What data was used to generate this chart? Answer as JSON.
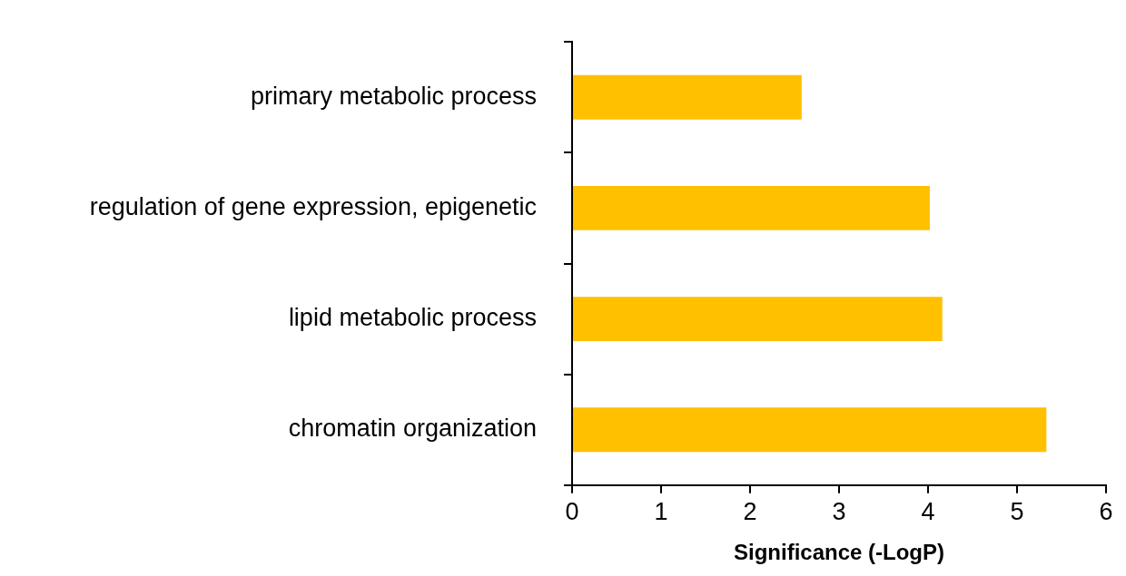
{
  "chart_data": {
    "type": "bar",
    "orientation": "horizontal",
    "categories": [
      "primary metabolic process",
      "regulation of gene expression, epigenetic",
      "lipid metabolic process",
      "chromatin organization"
    ],
    "values": [
      2.58,
      4.02,
      4.16,
      5.33
    ],
    "color": "#ffc000",
    "xlabel": "Significance (-LogP)",
    "xlim": [
      0,
      6
    ],
    "xticks": [
      0,
      1,
      2,
      3,
      4,
      5,
      6
    ]
  }
}
